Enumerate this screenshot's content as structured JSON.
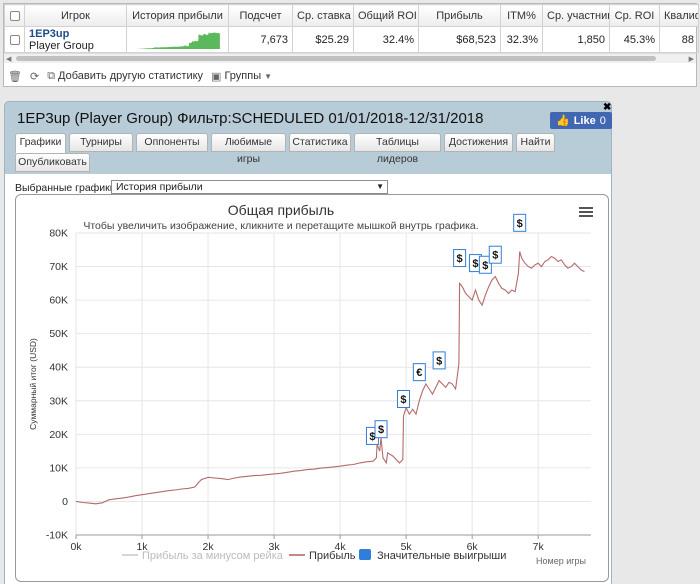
{
  "stats_table": {
    "columns": [
      "Игрок",
      "История прибыли",
      "Подсчет",
      "Ср. ставка",
      "Общий ROI",
      "Прибыль",
      "ITM%",
      "Ср. участник",
      "Ср. ROI",
      "Квалиф"
    ],
    "row": {
      "player_name": "1EP3up",
      "player_group": "Player Group",
      "count": "7,673",
      "avg_stake": "$25.29",
      "total_roi": "32.4%",
      "profit": "$68,523",
      "itm": "32.3%",
      "avg_entrants": "1,850",
      "avg_roi": "45.3%",
      "qualif": "88"
    },
    "spark_color": "#5cb85c"
  },
  "toolbar": {
    "add_stat": "Добавить другую статистику",
    "groups": "Группы"
  },
  "panel": {
    "title": "1EP3up (Player Group) Фильтр:SCHEDULED 01/01/2018-12/31/2018",
    "like_label": "Like",
    "like_count": "0",
    "tabs": [
      "Графики",
      "Турниры",
      "Оппоненты",
      "Любимые игры",
      "Статистика",
      "Таблицы лидеров",
      "Достижения",
      "Найти",
      "Опубликовать"
    ],
    "active_tab": "Графики",
    "selector_label": "Выбранные графики:",
    "selector_value": "История прибыли"
  },
  "chart_data": {
    "type": "line",
    "title": "Общая прибыль",
    "subtitle": "Чтобы увеличить изображение, кликните и перетащите мышкой внутрь графика.",
    "ylabel": "Суммарный итог (USD)",
    "xlabel": "Номер игры",
    "ylim": [
      -10000,
      80000
    ],
    "xlim": [
      0,
      7800
    ],
    "y_ticks": [
      "-10K",
      "0",
      "10K",
      "20K",
      "30K",
      "40K",
      "50K",
      "60K",
      "70K",
      "80K"
    ],
    "x_ticks": [
      "0k",
      "1k",
      "2k",
      "3k",
      "4k",
      "5k",
      "6k",
      "7k"
    ],
    "grid": true,
    "legend": [
      {
        "name": "Прибыль за минусом рейка",
        "color": "#cccccc"
      },
      {
        "name": "Прибыль",
        "color": "#b46a6a"
      },
      {
        "name": "Значительные выигрыши",
        "color": "#2f7ed8"
      }
    ],
    "series": [
      {
        "name": "Прибыль",
        "color": "#b46a6a",
        "x": [
          0,
          100,
          200,
          300,
          400,
          500,
          600,
          700,
          800,
          900,
          1000,
          1100,
          1200,
          1300,
          1400,
          1500,
          1600,
          1700,
          1800,
          1850,
          1900,
          2000,
          2100,
          2200,
          2300,
          2400,
          2500,
          2600,
          2700,
          2800,
          2900,
          3000,
          3100,
          3200,
          3300,
          3400,
          3500,
          3600,
          3700,
          3800,
          3900,
          4000,
          4100,
          4200,
          4300,
          4400,
          4500,
          4550,
          4560,
          4600,
          4620,
          4650,
          4700,
          4720,
          4800,
          4900,
          4950,
          4960,
          5000,
          5050,
          5100,
          5150,
          5200,
          5250,
          5300,
          5350,
          5400,
          5450,
          5500,
          5550,
          5600,
          5650,
          5700,
          5750,
          5800,
          5810,
          5850,
          5900,
          5950,
          6000,
          6050,
          6100,
          6150,
          6200,
          6250,
          6300,
          6350,
          6400,
          6450,
          6500,
          6550,
          6600,
          6650,
          6700,
          6720,
          6750,
          6800,
          6850,
          6900,
          6950,
          7000,
          7050,
          7100,
          7150,
          7200,
          7250,
          7300,
          7350,
          7400,
          7450,
          7500,
          7550,
          7600,
          7650,
          7700
        ],
        "values": [
          0,
          -300,
          -500,
          -700,
          -400,
          500,
          800,
          1000,
          1300,
          1700,
          2000,
          2300,
          2600,
          2900,
          3200,
          3400,
          3700,
          3900,
          4300,
          5500,
          6500,
          7200,
          7000,
          6800,
          6500,
          7000,
          7300,
          7500,
          7700,
          7800,
          8000,
          8200,
          8400,
          8700,
          9000,
          9200,
          9500,
          9600,
          9900,
          10100,
          10300,
          10500,
          10800,
          11000,
          11500,
          11800,
          12000,
          13000,
          17000,
          15000,
          19000,
          13000,
          11500,
          14500,
          13500,
          11500,
          12500,
          25500,
          28000,
          26000,
          27500,
          26000,
          30000,
          33000,
          35000,
          33500,
          32000,
          34000,
          36000,
          35000,
          34000,
          35500,
          35000,
          33500,
          41000,
          65000,
          64000,
          62000,
          61000,
          60000,
          63000,
          60000,
          58500,
          61500,
          64000,
          66000,
          67000,
          65000,
          63500,
          63000,
          62000,
          63000,
          62500,
          68000,
          74500,
          72500,
          71000,
          70000,
          69500,
          70500,
          71000,
          70000,
          71500,
          72000,
          73000,
          72500,
          71500,
          72000,
          70500,
          69500,
          70000,
          71000,
          70000,
          69000,
          68500
        ]
      }
    ],
    "significant_wins": [
      {
        "label": "$",
        "x": 4490,
        "y": 17000
      },
      {
        "label": "$",
        "x": 4620,
        "y": 19000
      },
      {
        "label": "$",
        "x": 4960,
        "y": 28000
      },
      {
        "label": "€",
        "x": 5200,
        "y": 36000
      },
      {
        "label": "$",
        "x": 5500,
        "y": 39500
      },
      {
        "label": "$",
        "x": 5810,
        "y": 70000
      },
      {
        "label": "$",
        "x": 6050,
        "y": 68500
      },
      {
        "label": "$",
        "x": 6200,
        "y": 68000
      },
      {
        "label": "$",
        "x": 6350,
        "y": 71000
      },
      {
        "label": "$",
        "x": 6720,
        "y": 80500
      }
    ]
  }
}
